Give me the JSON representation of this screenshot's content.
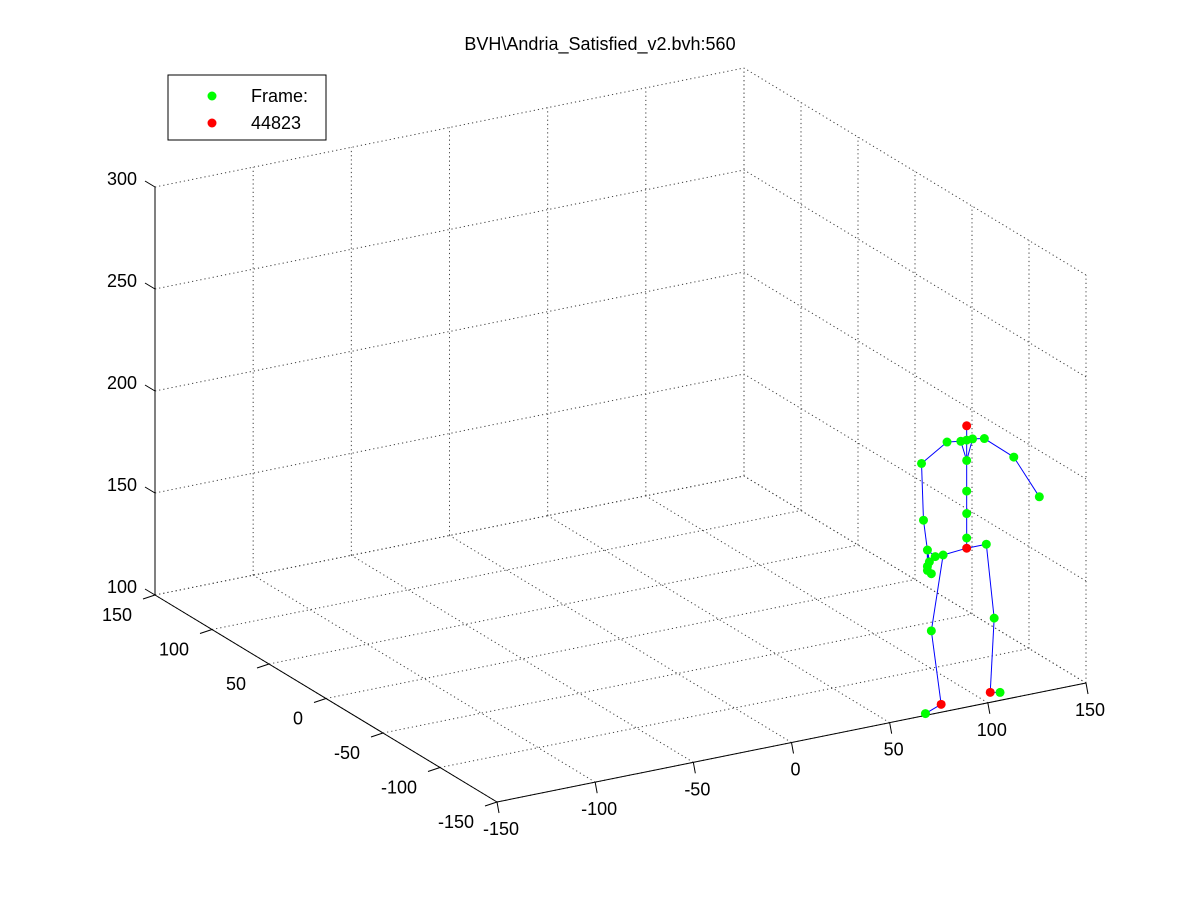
{
  "chart_data": {
    "type": "scatter",
    "title": "BVH\\Andria_Satisfied_v2.bvh:560",
    "view": "3d",
    "grid": true,
    "legend": {
      "placement": "top-left",
      "entries": [
        {
          "label": "Frame:",
          "color": "#00ff00"
        },
        {
          "label": "44823",
          "color": "#ff0000"
        }
      ]
    },
    "axes": {
      "x": {
        "ticks": [
          "-150",
          "-100",
          "-50",
          "0",
          "50",
          "100",
          "150"
        ],
        "range": [
          -150,
          150
        ]
      },
      "y": {
        "ticks": [
          "-150",
          "-100",
          "-50",
          "0",
          "50",
          "100",
          "150"
        ],
        "range": [
          -150,
          150
        ]
      },
      "z": {
        "ticks": [
          "100",
          "150",
          "200",
          "250",
          "300"
        ],
        "range": [
          100,
          300
        ]
      }
    },
    "colors": {
      "joint": "#00ff00",
      "key_joint": "#ff0000",
      "bone": "#0000ff"
    },
    "joints": [
      {
        "name": "hips",
        "x": 138,
        "y": -66,
        "z": 140,
        "key": true
      },
      {
        "name": "spine",
        "x": 138,
        "y": -66,
        "z": 145
      },
      {
        "name": "spine1",
        "x": 138,
        "y": -66,
        "z": 157
      },
      {
        "name": "spine2",
        "x": 138,
        "y": -66,
        "z": 168
      },
      {
        "name": "neck",
        "x": 138,
        "y": -66,
        "z": 183
      },
      {
        "name": "head",
        "x": 138,
        "y": -66,
        "z": 193
      },
      {
        "name": "head_top",
        "x": 138,
        "y": -66,
        "z": 200,
        "key": true
      },
      {
        "name": "l_collar",
        "x": 141,
        "y": -66,
        "z": 193
      },
      {
        "name": "l_shoulder",
        "x": 147,
        "y": -66,
        "z": 192
      },
      {
        "name": "l_elbow",
        "x": 162,
        "y": -66,
        "z": 180
      },
      {
        "name": "l_wrist",
        "x": 175,
        "y": -66,
        "z": 158
      },
      {
        "name": "r_collar",
        "x": 135,
        "y": -66,
        "z": 193
      },
      {
        "name": "r_shoulder",
        "x": 128,
        "y": -66,
        "z": 194
      },
      {
        "name": "r_elbow",
        "x": 115,
        "y": -66,
        "z": 186
      },
      {
        "name": "r_wrist",
        "x": 116,
        "y": -66,
        "z": 158
      },
      {
        "name": "r_hand",
        "x": 118,
        "y": -66,
        "z": 143
      },
      {
        "name": "r_finger1",
        "x": 119,
        "y": -66,
        "z": 137
      },
      {
        "name": "r_finger2",
        "x": 118,
        "y": -66,
        "z": 135
      },
      {
        "name": "r_finger3",
        "x": 118,
        "y": -66,
        "z": 133
      },
      {
        "name": "r_finger4",
        "x": 120,
        "y": -66,
        "z": 131
      },
      {
        "name": "r_finger5",
        "x": 122,
        "y": -66,
        "z": 139
      },
      {
        "name": "r_hip",
        "x": 126,
        "y": -66,
        "z": 139
      },
      {
        "name": "r_knee",
        "x": 120,
        "y": -66,
        "z": 103
      },
      {
        "name": "r_ankle",
        "x": 125,
        "y": -66,
        "z": 66,
        "key": true
      },
      {
        "name": "r_toe",
        "x": 117,
        "y": -66,
        "z": 63
      },
      {
        "name": "l_hip",
        "x": 148,
        "y": -66,
        "z": 140
      },
      {
        "name": "l_knee",
        "x": 152,
        "y": -66,
        "z": 103
      },
      {
        "name": "l_ankle",
        "x": 150,
        "y": -66,
        "z": 67,
        "key": true
      },
      {
        "name": "l_toe",
        "x": 155,
        "y": -66,
        "z": 66
      }
    ],
    "bones": [
      [
        "hips",
        "spine"
      ],
      [
        "spine",
        "spine1"
      ],
      [
        "spine1",
        "spine2"
      ],
      [
        "spine2",
        "neck"
      ],
      [
        "neck",
        "head"
      ],
      [
        "head",
        "head_top"
      ],
      [
        "neck",
        "l_collar"
      ],
      [
        "l_collar",
        "l_shoulder"
      ],
      [
        "l_shoulder",
        "l_elbow"
      ],
      [
        "l_elbow",
        "l_wrist"
      ],
      [
        "neck",
        "r_collar"
      ],
      [
        "r_collar",
        "r_shoulder"
      ],
      [
        "r_shoulder",
        "r_elbow"
      ],
      [
        "r_elbow",
        "r_wrist"
      ],
      [
        "r_wrist",
        "r_hand"
      ],
      [
        "r_hand",
        "r_finger1"
      ],
      [
        "r_hand",
        "r_finger2"
      ],
      [
        "r_hand",
        "r_finger3"
      ],
      [
        "r_hand",
        "r_finger4"
      ],
      [
        "r_hand",
        "r_finger5"
      ],
      [
        "hips",
        "r_hip"
      ],
      [
        "r_hip",
        "r_knee"
      ],
      [
        "r_knee",
        "r_ankle"
      ],
      [
        "r_ankle",
        "r_toe"
      ],
      [
        "hips",
        "l_hip"
      ],
      [
        "l_hip",
        "l_knee"
      ],
      [
        "l_knee",
        "l_ankle"
      ],
      [
        "l_ankle",
        "l_toe"
      ]
    ]
  }
}
